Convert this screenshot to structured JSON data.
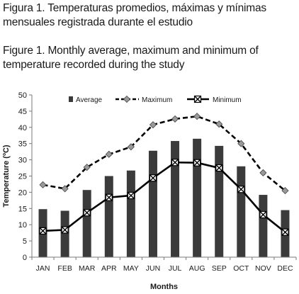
{
  "captions": {
    "spanish": [
      "Figura 1. Temperaturas promedios, máximas y mínimas",
      "mensuales registrada durante el estudio"
    ],
    "english": [
      "Figure 1. Monthly average, maximum and minimum of",
      "temperature recorded during the study"
    ]
  },
  "chart_data": {
    "type": "bar",
    "title": "",
    "xlabel": "Months",
    "ylabel": "Temperature (ºC)",
    "ylim": [
      0,
      50
    ],
    "yticks": [
      0,
      5,
      10,
      15,
      20,
      25,
      30,
      35,
      40,
      45,
      50
    ],
    "grid": false,
    "legend_position": "top",
    "categories": [
      "JAN",
      "FEB",
      "MAR",
      "APR",
      "MAY",
      "JUN",
      "JUL",
      "AUG",
      "SEP",
      "OCT",
      "NOV",
      "DEC"
    ],
    "series": [
      {
        "name": "Average",
        "kind": "bar",
        "color": "#3b3b3b",
        "values": [
          14.8,
          14.3,
          20.7,
          25.0,
          26.7,
          32.8,
          35.8,
          36.5,
          34.3,
          28.0,
          19.2,
          14.5
        ]
      },
      {
        "name": "Maximum",
        "kind": "line",
        "style": "dashed",
        "marker": "diamond",
        "color": "#000000",
        "values": [
          22.3,
          21.1,
          27.7,
          31.7,
          34.0,
          40.8,
          42.6,
          43.4,
          41.0,
          35.0,
          26.0,
          20.5
        ]
      },
      {
        "name": "Minimum",
        "kind": "line",
        "style": "solid",
        "marker": "x-box",
        "color": "#000000",
        "values": [
          8.1,
          8.4,
          13.7,
          18.4,
          19.0,
          24.4,
          29.2,
          29.1,
          27.5,
          20.9,
          13.1,
          7.7
        ]
      }
    ]
  }
}
